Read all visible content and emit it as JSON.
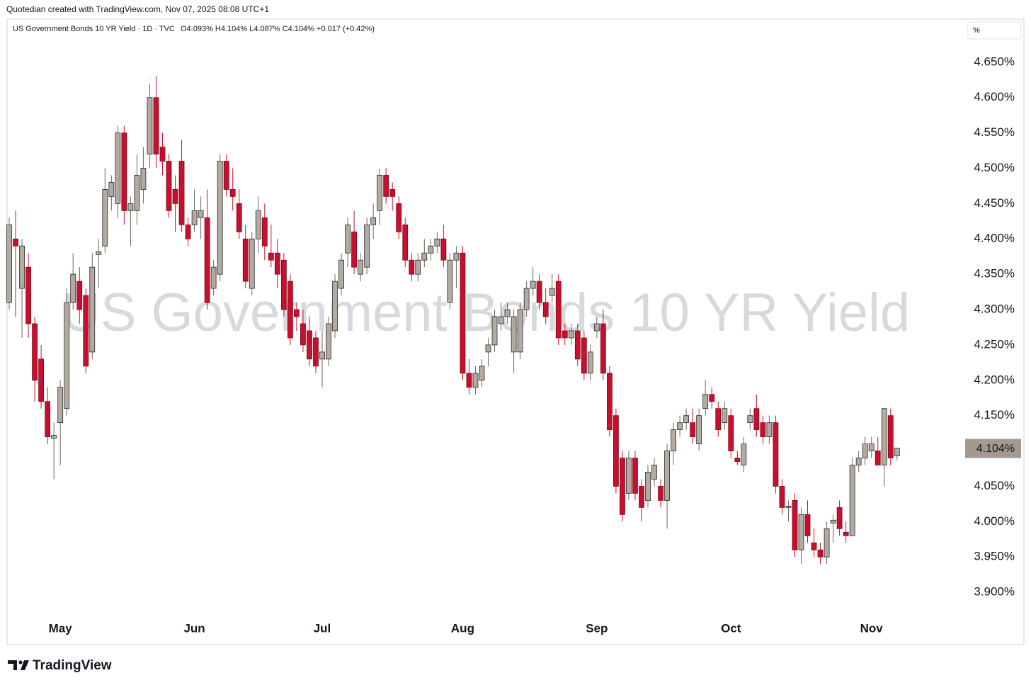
{
  "chart_data": {
    "type": "candlestick",
    "header": "Quotedian created with TradingView.com, Nov 07, 2025 08:08 UTC+1",
    "title": "US Government Bonds 10 YR Yield · 1D · TVC",
    "legend_values": "O4.093%  H4.104%  L4.087%  C4.104%  +0.017 (+0.42%)",
    "watermark": "US Government Bonds 10 YR Yield",
    "unit_selector": "%",
    "brand": "TradingView",
    "up_color": "#b3aba2",
    "down_color": "#c8102e",
    "grid": false,
    "ylim": [
      3.868,
      4.711
    ],
    "yticks": [
      {
        "value": 3.9,
        "label": "3.900%"
      },
      {
        "value": 3.95,
        "label": "3.950%"
      },
      {
        "value": 4.0,
        "label": "4.000%"
      },
      {
        "value": 4.05,
        "label": "4.050%"
      },
      {
        "value": 4.1,
        "label": "4.100%"
      },
      {
        "value": 4.15,
        "label": "4.150%"
      },
      {
        "value": 4.2,
        "label": "4.200%"
      },
      {
        "value": 4.25,
        "label": "4.250%"
      },
      {
        "value": 4.3,
        "label": "4.300%"
      },
      {
        "value": 4.35,
        "label": "4.350%"
      },
      {
        "value": 4.4,
        "label": "4.400%"
      },
      {
        "value": 4.45,
        "label": "4.450%"
      },
      {
        "value": 4.5,
        "label": "4.500%"
      },
      {
        "value": 4.55,
        "label": "4.550%"
      },
      {
        "value": 4.6,
        "label": "4.600%"
      },
      {
        "value": 4.65,
        "label": "4.650%"
      }
    ],
    "last_price": {
      "value": 4.104,
      "label": "4.104%"
    },
    "categories": [
      null,
      null,
      null,
      null,
      null,
      null,
      null,
      null,
      "May",
      null,
      null,
      null,
      null,
      null,
      null,
      null,
      null,
      null,
      null,
      null,
      null,
      null,
      null,
      null,
      null,
      null,
      null,
      null,
      null,
      "Jun",
      null,
      null,
      null,
      null,
      null,
      null,
      null,
      null,
      null,
      null,
      null,
      null,
      null,
      null,
      null,
      null,
      null,
      null,
      null,
      "Jul",
      null,
      null,
      null,
      null,
      null,
      null,
      null,
      null,
      null,
      null,
      null,
      null,
      null,
      null,
      null,
      null,
      null,
      null,
      null,
      null,
      null,
      "Aug",
      null,
      null,
      null,
      null,
      null,
      null,
      null,
      null,
      null,
      null,
      null,
      null,
      null,
      null,
      null,
      null,
      null,
      null,
      null,
      null,
      "Sep",
      null,
      null,
      null,
      null,
      null,
      null,
      null,
      null,
      null,
      null,
      null,
      null,
      null,
      null,
      null,
      null,
      null,
      null,
      null,
      null,
      "Oct",
      null,
      null,
      null,
      null,
      null,
      null,
      null,
      null,
      null,
      null,
      null,
      null,
      null,
      null,
      null,
      null,
      null,
      null,
      null,
      null,
      null,
      "Nov",
      null,
      null,
      null,
      null
    ],
    "open": [
      4.31,
      4.4,
      4.33,
      4.36,
      4.28,
      4.23,
      4.17,
      4.118,
      4.14,
      4.16,
      4.31,
      4.34,
      4.32,
      4.24,
      4.378,
      4.39,
      4.46,
      4.45,
      4.55,
      4.44,
      4.44,
      4.47,
      4.52,
      4.6,
      4.53,
      4.51,
      4.47,
      4.51,
      4.42,
      4.42,
      4.43,
      4.43,
      4.33,
      4.35,
      4.51,
      4.47,
      4.45,
      4.4,
      4.33,
      4.4,
      4.43,
      4.38,
      4.38,
      4.37,
      4.34,
      4.3,
      4.28,
      4.27,
      4.26,
      4.23,
      4.23,
      4.27,
      4.33,
      4.38,
      4.41,
      4.35,
      4.36,
      4.42,
      4.44,
      4.49,
      4.47,
      4.45,
      4.42,
      4.37,
      4.35,
      4.37,
      4.38,
      4.39,
      4.4,
      4.31,
      4.37,
      4.38,
      4.21,
      4.19,
      4.2,
      4.24,
      4.25,
      4.28,
      4.29,
      4.24,
      4.24,
      4.3,
      4.33,
      4.34,
      4.31,
      4.32,
      4.34,
      4.27,
      4.26,
      4.27,
      4.26,
      4.21,
      4.27,
      4.28,
      4.21,
      4.15,
      4.09,
      4.04,
      4.09,
      4.05,
      4.03,
      4.06,
      4.05,
      4.03,
      4.1,
      4.13,
      4.14,
      4.14,
      4.11,
      4.16,
      4.18,
      4.16,
      4.14,
      4.15,
      4.09,
      4.08,
      4.14,
      4.16,
      4.14,
      4.12,
      4.14,
      4.05,
      4.02,
      4.03,
      3.96,
      4.01,
      3.97,
      3.96,
      3.95,
      3.998,
      4.02,
      3.985,
      3.98,
      4.08,
      4.09,
      4.1,
      4.1,
      4.08,
      4.15,
      4.093
    ],
    "high": [
      4.43,
      4.44,
      4.4,
      4.38,
      4.29,
      4.25,
      4.19,
      4.14,
      4.2,
      4.33,
      4.38,
      4.36,
      4.33,
      4.38,
      4.4,
      4.5,
      4.49,
      4.56,
      4.56,
      4.46,
      4.52,
      4.53,
      4.62,
      4.63,
      4.55,
      4.52,
      4.49,
      4.54,
      4.43,
      4.47,
      4.46,
      4.47,
      4.37,
      4.52,
      4.52,
      4.5,
      4.47,
      4.42,
      4.41,
      4.46,
      4.45,
      4.42,
      4.4,
      4.38,
      4.35,
      4.31,
      4.3,
      4.29,
      4.27,
      4.27,
      4.29,
      4.35,
      4.38,
      4.43,
      4.44,
      4.38,
      4.43,
      4.45,
      4.5,
      4.5,
      4.48,
      4.46,
      4.43,
      4.38,
      4.38,
      4.4,
      4.4,
      4.41,
      4.42,
      4.38,
      4.39,
      4.39,
      4.23,
      4.22,
      4.23,
      4.26,
      4.3,
      4.31,
      4.31,
      4.3,
      4.31,
      4.34,
      4.36,
      4.35,
      4.33,
      4.35,
      4.35,
      4.28,
      4.28,
      4.28,
      4.27,
      4.25,
      4.29,
      4.3,
      4.22,
      4.16,
      4.1,
      4.1,
      4.1,
      4.06,
      4.08,
      4.09,
      4.06,
      4.11,
      4.14,
      4.15,
      4.16,
      4.16,
      4.16,
      4.2,
      4.19,
      4.17,
      4.17,
      4.16,
      4.1,
      4.12,
      4.16,
      4.18,
      4.15,
      4.15,
      4.15,
      4.06,
      4.03,
      4.04,
      4.02,
      4.03,
      3.99,
      3.97,
      4.0,
      4.01,
      4.03,
      4.0,
      4.09,
      4.1,
      4.12,
      4.12,
      4.12,
      4.16,
      4.16,
      4.104
    ],
    "low": [
      4.3,
      4.29,
      4.26,
      4.26,
      4.17,
      4.16,
      4.11,
      4.06,
      4.08,
      4.15,
      4.3,
      4.28,
      4.21,
      4.23,
      4.33,
      4.38,
      4.44,
      4.43,
      4.42,
      4.39,
      4.42,
      4.45,
      4.5,
      4.5,
      4.49,
      4.43,
      4.41,
      4.41,
      4.39,
      4.41,
      4.4,
      4.3,
      4.32,
      4.34,
      4.46,
      4.44,
      4.4,
      4.33,
      4.32,
      4.38,
      4.37,
      4.36,
      4.33,
      4.29,
      4.25,
      4.27,
      4.24,
      4.22,
      4.21,
      4.19,
      4.22,
      4.26,
      4.32,
      4.36,
      4.35,
      4.34,
      4.35,
      4.4,
      4.42,
      4.45,
      4.44,
      4.4,
      4.36,
      4.34,
      4.34,
      4.36,
      4.37,
      4.38,
      4.36,
      4.3,
      4.33,
      4.2,
      4.18,
      4.18,
      4.19,
      4.22,
      4.24,
      4.27,
      4.28,
      4.21,
      4.23,
      4.29,
      4.32,
      4.3,
      4.28,
      4.31,
      4.25,
      4.25,
      4.25,
      4.22,
      4.2,
      4.2,
      4.26,
      4.2,
      4.12,
      4.04,
      4.0,
      4.03,
      4.03,
      4.0,
      4.02,
      4.05,
      4.02,
      3.99,
      4.08,
      4.12,
      4.13,
      4.11,
      4.1,
      4.15,
      4.16,
      4.12,
      4.13,
      4.09,
      4.08,
      4.07,
      4.13,
      4.12,
      4.11,
      4.11,
      4.04,
      4.01,
      4.0,
      3.95,
      3.94,
      3.97,
      3.95,
      3.94,
      3.94,
      3.97,
      3.98,
      3.97,
      3.98,
      4.07,
      4.08,
      4.09,
      4.08,
      4.05,
      4.08,
      4.087
    ],
    "close": [
      4.42,
      4.39,
      4.39,
      4.28,
      4.2,
      4.17,
      4.12,
      4.122,
      4.19,
      4.31,
      4.35,
      4.3,
      4.22,
      4.36,
      4.382,
      4.47,
      4.48,
      4.55,
      4.44,
      4.45,
      4.49,
      4.5,
      4.6,
      4.52,
      4.51,
      4.44,
      4.45,
      4.42,
      4.4,
      4.44,
      4.44,
      4.31,
      4.36,
      4.51,
      4.47,
      4.46,
      4.41,
      4.34,
      4.4,
      4.44,
      4.39,
      4.37,
      4.35,
      4.3,
      4.26,
      4.29,
      4.25,
      4.23,
      4.22,
      4.24,
      4.28,
      4.34,
      4.37,
      4.42,
      4.36,
      4.37,
      4.42,
      4.43,
      4.49,
      4.46,
      4.46,
      4.41,
      4.37,
      4.35,
      4.37,
      4.38,
      4.39,
      4.4,
      4.37,
      4.37,
      4.38,
      4.21,
      4.19,
      4.21,
      4.22,
      4.25,
      4.29,
      4.29,
      4.3,
      4.29,
      4.3,
      4.33,
      4.34,
      4.31,
      4.29,
      4.33,
      4.26,
      4.26,
      4.27,
      4.23,
      4.21,
      4.24,
      4.28,
      4.21,
      4.13,
      4.05,
      4.01,
      4.09,
      4.04,
      4.02,
      4.07,
      4.08,
      4.03,
      4.1,
      4.13,
      4.14,
      4.15,
      4.12,
      4.15,
      4.18,
      4.17,
      4.13,
      4.16,
      4.1,
      4.085,
      4.11,
      4.15,
      4.13,
      4.12,
      4.14,
      4.05,
      4.02,
      4.022,
      3.96,
      4.01,
      3.98,
      3.96,
      3.95,
      3.99,
      4.002,
      3.99,
      3.98,
      4.08,
      4.09,
      4.11,
      4.11,
      4.08,
      4.16,
      4.09,
      4.104
    ]
  }
}
